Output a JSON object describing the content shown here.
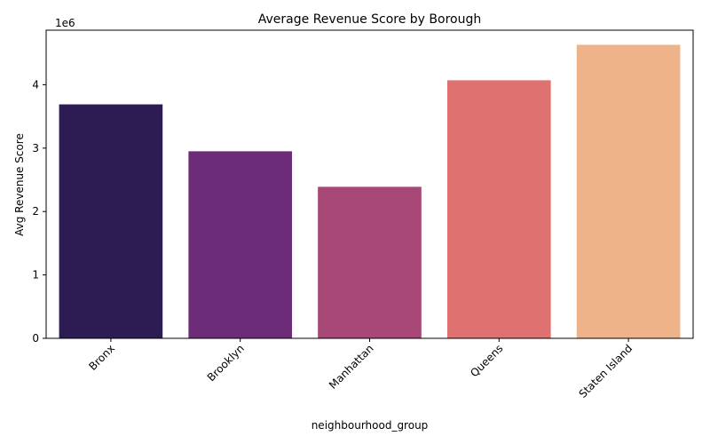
{
  "chart_data": {
    "type": "bar",
    "title": "Average Revenue Score by Borough",
    "xlabel": "neighbourhood_group",
    "ylabel": "Avg Revenue Score",
    "y_offset_label": "1e6",
    "categories": [
      "Bronx",
      "Brooklyn",
      "Manhattan",
      "Queens",
      "Staten Island"
    ],
    "values": [
      3690000,
      2950000,
      2390000,
      4070000,
      4630000
    ],
    "colors": [
      "#2d1b54",
      "#6c2c77",
      "#a84877",
      "#df7171",
      "#efb389"
    ],
    "ylim": [
      0,
      4860000
    ],
    "y_ticks": [
      0,
      1000000,
      2000000,
      3000000,
      4000000
    ],
    "y_tick_labels": [
      "0",
      "1",
      "2",
      "3",
      "4"
    ],
    "x_tick_rotation_deg": -45,
    "grid": false,
    "legend": "none"
  }
}
